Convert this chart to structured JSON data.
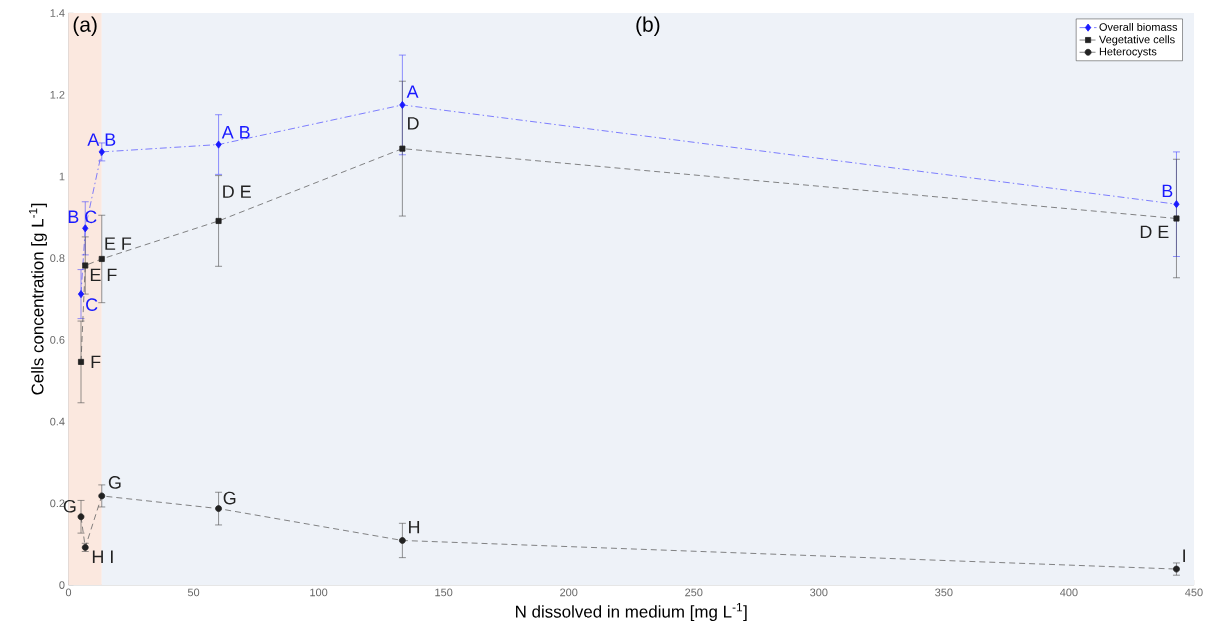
{
  "chart_data": {
    "type": "line",
    "xlabel": "N dissolved in medium [mg L$^{-1}$]",
    "ylabel": "Cells concentration [g L$^{-1}$]",
    "x": [
      5,
      6.7,
      13.3,
      60,
      133.5,
      443
    ],
    "series": [
      {
        "name": "Overall biomass",
        "color": "#1a1aff",
        "marker": "diamond",
        "line_style": "dashdot",
        "values": [
          0.712,
          0.873,
          1.06,
          1.078,
          1.175,
          0.932
        ],
        "errors": [
          0.06,
          0.065,
          0.022,
          0.073,
          0.122,
          0.128
        ],
        "value_labels": [
          "C",
          "B C",
          "A B",
          "A B",
          "A",
          "B"
        ]
      },
      {
        "name": "Vegetative cells",
        "color": "#222222",
        "marker": "square",
        "line_style": "dashed",
        "values": [
          0.546,
          0.782,
          0.798,
          0.891,
          1.068,
          0.897
        ],
        "errors": [
          0.1,
          0.07,
          0.107,
          0.111,
          0.165,
          0.145
        ],
        "value_labels": [
          "F",
          "E F",
          "E F",
          "D E",
          "D",
          "D E"
        ]
      },
      {
        "name": "Heterocysts",
        "color": "#222222",
        "marker": "circle",
        "line_style": "dashed",
        "values": [
          0.167,
          0.092,
          0.218,
          0.187,
          0.109,
          0.039
        ],
        "errors": [
          0.04,
          0.01,
          0.027,
          0.04,
          0.042,
          0.015
        ],
        "value_labels": [
          "G",
          "H I",
          "G",
          "G",
          "H",
          "I"
        ]
      }
    ],
    "bands": [
      {
        "axis": "x",
        "from": 0,
        "to": 13.3,
        "label": "(a)",
        "color": "#fbe8df"
      },
      {
        "axis": "x",
        "from": 13.3,
        "to": 450,
        "label": "(b)",
        "color": "#eef2f8"
      }
    ],
    "xlim": [
      0,
      450
    ],
    "ylim": [
      0,
      1.4
    ],
    "xticks": [
      0,
      50,
      100,
      150,
      200,
      250,
      300,
      350,
      400,
      450
    ],
    "yticks": [
      0,
      0.2,
      0.4,
      0.6,
      0.8,
      1,
      1.2,
      1.4
    ],
    "grid": false,
    "legend": "top right"
  }
}
